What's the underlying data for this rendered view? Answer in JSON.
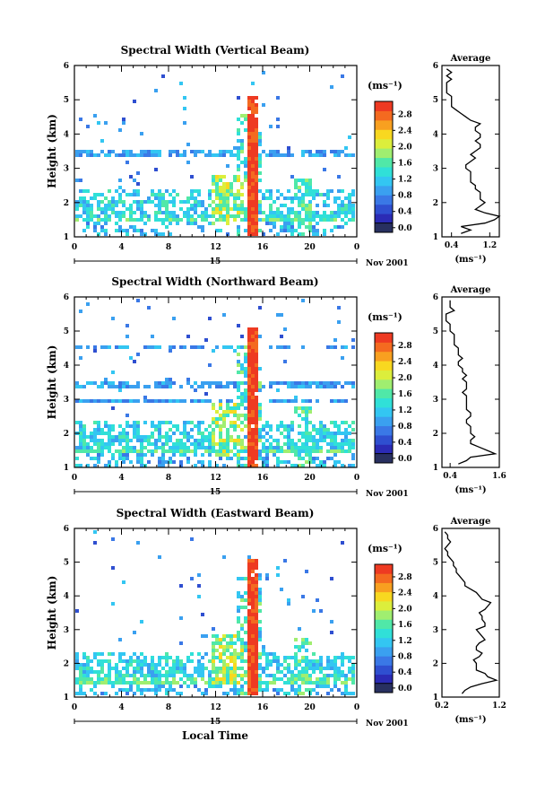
{
  "colors": {
    "scale": [
      "#283060",
      "#2b2bb5",
      "#2f4fd0",
      "#3a78e6",
      "#3aa0f0",
      "#33c6f2",
      "#30e0d8",
      "#50e8a8",
      "#a0ee70",
      "#dcee3c",
      "#f8d820",
      "#f8a020",
      "#f46a20",
      "#ee3a22"
    ]
  },
  "chart_data": [
    {
      "type": "heatmap",
      "title": "Spectral Width (Vertical Beam)",
      "ylabel": "Height (km)",
      "xlabel": "",
      "x_ticks": [
        "0",
        "4",
        "8",
        "12",
        "16",
        "20",
        "0"
      ],
      "y_ticks": [
        "1",
        "2",
        "3",
        "4",
        "5",
        "6"
      ],
      "xlim": [
        0,
        24
      ],
      "ylim": [
        1,
        6
      ],
      "date_label": "15",
      "month_year": "Nov 2001",
      "colorbar": {
        "unit": "(ms⁻¹)",
        "ticks": [
          "2.8",
          "2.4",
          "2.0",
          "1.6",
          "1.2",
          "0.8",
          "0.4",
          "0.0"
        ],
        "range": [
          0,
          3.0
        ]
      },
      "average": {
        "title": "Average",
        "xlabel": "(ms⁻¹)",
        "x_ticks": [
          "0.4",
          "1.2"
        ],
        "xlim": [
          0.2,
          1.4
        ],
        "y_ticks": [
          "1",
          "2",
          "3",
          "4",
          "5",
          "6"
        ],
        "profile_heights": [
          1.1,
          1.2,
          1.3,
          1.4,
          1.5,
          1.6,
          1.7,
          1.8,
          1.9,
          2.0,
          2.1,
          2.2,
          2.3,
          2.4,
          2.5,
          2.6,
          2.7,
          2.8,
          2.9,
          3.0,
          3.1,
          3.2,
          3.3,
          3.4,
          3.5,
          3.6,
          3.7,
          3.8,
          3.9,
          4.0,
          4.1,
          4.2,
          4.3,
          4.4,
          4.5,
          4.6,
          4.7,
          4.8,
          4.9,
          5.0,
          5.1,
          5.2,
          5.3,
          5.4,
          5.5,
          5.6,
          5.7,
          5.8,
          5.9
        ],
        "profile_values": [
          0.6,
          0.8,
          0.6,
          1.1,
          1.3,
          1.4,
          1.1,
          0.9,
          1.0,
          1.1,
          1.0,
          1.0,
          1.0,
          0.9,
          0.9,
          0.8,
          0.8,
          0.8,
          0.8,
          0.7,
          0.7,
          0.8,
          0.9,
          0.8,
          0.9,
          1.0,
          1.0,
          0.9,
          1.0,
          1.0,
          0.9,
          0.9,
          1.0,
          0.8,
          0.7,
          0.6,
          0.5,
          0.4,
          0.4,
          0.4,
          0.4,
          0.3,
          0.3,
          0.3,
          0.3,
          0.4,
          0.3,
          0.4,
          0.3
        ]
      }
    },
    {
      "type": "heatmap",
      "title": "Spectral Width (Northward Beam)",
      "ylabel": "Height (km)",
      "xlabel": "",
      "x_ticks": [
        "0",
        "4",
        "8",
        "12",
        "16",
        "20",
        "0"
      ],
      "y_ticks": [
        "1",
        "2",
        "3",
        "4",
        "5",
        "6"
      ],
      "xlim": [
        0,
        24
      ],
      "ylim": [
        1,
        6
      ],
      "date_label": "15",
      "month_year": "Nov 2001",
      "colorbar": {
        "unit": "(ms⁻¹)",
        "ticks": [
          "2.8",
          "2.4",
          "2.0",
          "1.6",
          "1.2",
          "0.8",
          "0.4",
          "0.0"
        ],
        "range": [
          0,
          3.0
        ]
      },
      "average": {
        "title": "Average",
        "xlabel": "(ms⁻¹)",
        "x_ticks": [
          "0.4",
          "1.6"
        ],
        "xlim": [
          0.2,
          1.6
        ],
        "y_ticks": [
          "1",
          "2",
          "3",
          "4",
          "5",
          "6"
        ],
        "profile_heights": [
          1.1,
          1.2,
          1.3,
          1.4,
          1.5,
          1.6,
          1.7,
          1.8,
          1.9,
          2.0,
          2.1,
          2.2,
          2.3,
          2.4,
          2.5,
          2.6,
          2.7,
          2.8,
          2.9,
          3.0,
          3.1,
          3.2,
          3.3,
          3.4,
          3.5,
          3.6,
          3.7,
          3.8,
          3.9,
          4.0,
          4.1,
          4.2,
          4.3,
          4.4,
          4.5,
          4.6,
          4.7,
          4.8,
          4.9,
          5.0,
          5.1,
          5.2,
          5.3,
          5.4,
          5.5,
          5.6,
          5.7,
          5.8,
          5.9
        ],
        "profile_values": [
          0.6,
          0.8,
          0.9,
          1.5,
          1.3,
          1.1,
          0.9,
          0.9,
          1.0,
          0.9,
          0.9,
          0.9,
          0.8,
          0.8,
          0.9,
          0.9,
          0.8,
          0.8,
          0.8,
          0.8,
          0.8,
          0.7,
          0.8,
          0.8,
          0.8,
          0.7,
          0.8,
          0.7,
          0.7,
          0.6,
          0.6,
          0.7,
          0.6,
          0.6,
          0.6,
          0.5,
          0.5,
          0.5,
          0.5,
          0.4,
          0.4,
          0.4,
          0.3,
          0.3,
          0.3,
          0.5,
          0.4,
          0.4,
          0.4
        ]
      }
    },
    {
      "type": "heatmap",
      "title": "Spectral Width (Eastward Beam)",
      "ylabel": "Height (km)",
      "xlabel": "Local Time",
      "x_ticks": [
        "0",
        "4",
        "8",
        "12",
        "16",
        "20",
        "0"
      ],
      "y_ticks": [
        "1",
        "2",
        "3",
        "4",
        "5",
        "6"
      ],
      "xlim": [
        0,
        24
      ],
      "ylim": [
        1,
        6
      ],
      "date_label": "15",
      "month_year": "Nov 2001",
      "colorbar": {
        "unit": "(ms⁻¹)",
        "ticks": [
          "2.8",
          "2.4",
          "2.0",
          "1.6",
          "1.2",
          "0.8",
          "0.4",
          "0.0"
        ],
        "range": [
          0,
          3.0
        ]
      },
      "average": {
        "title": "Average",
        "xlabel": "(ms⁻¹)",
        "x_ticks": [
          "0.2",
          "1.2"
        ],
        "xlim": [
          0.2,
          1.2
        ],
        "y_ticks": [
          "1",
          "2",
          "3",
          "4",
          "5",
          "6"
        ],
        "profile_heights": [
          1.1,
          1.2,
          1.3,
          1.4,
          1.5,
          1.6,
          1.7,
          1.8,
          1.9,
          2.0,
          2.1,
          2.2,
          2.3,
          2.4,
          2.5,
          2.6,
          2.7,
          2.8,
          2.9,
          3.0,
          3.1,
          3.2,
          3.3,
          3.4,
          3.5,
          3.6,
          3.7,
          3.8,
          3.9,
          4.0,
          4.1,
          4.2,
          4.3,
          4.4,
          4.5,
          4.6,
          4.7,
          4.8,
          4.9,
          5.0,
          5.1,
          5.2,
          5.3,
          5.4,
          5.5,
          5.6,
          5.7,
          5.8,
          5.9
        ],
        "profile_values": [
          0.55,
          0.6,
          0.7,
          0.9,
          1.15,
          1.0,
          0.95,
          0.8,
          0.8,
          0.8,
          0.75,
          0.85,
          0.9,
          0.8,
          0.8,
          0.85,
          0.95,
          0.9,
          0.85,
          0.8,
          0.95,
          0.95,
          0.9,
          0.9,
          0.85,
          0.95,
          1.0,
          1.05,
          0.9,
          0.85,
          0.8,
          0.7,
          0.6,
          0.6,
          0.55,
          0.5,
          0.45,
          0.45,
          0.4,
          0.4,
          0.35,
          0.3,
          0.3,
          0.25,
          0.3,
          0.35,
          0.3,
          0.3,
          0.25
        ]
      }
    }
  ]
}
